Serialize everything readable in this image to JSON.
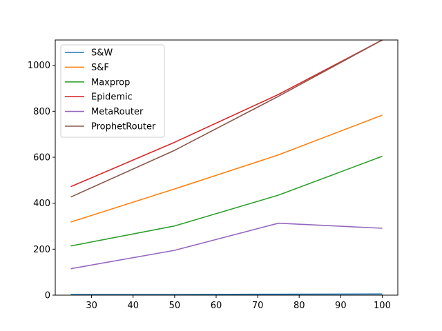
{
  "chart_data": {
    "type": "line",
    "title": "",
    "xlabel": "",
    "ylabel": "",
    "x": [
      25,
      50,
      75,
      100
    ],
    "xlim": [
      21.25,
      103.75
    ],
    "ylim": [
      0,
      1110
    ],
    "xticks": [
      30,
      40,
      50,
      60,
      70,
      80,
      90,
      100
    ],
    "yticks": [
      0,
      200,
      400,
      600,
      800,
      1000
    ],
    "grid": false,
    "legend_position": "top-left",
    "series": [
      {
        "name": "S&W",
        "color": "#1f77b4",
        "values": [
          3,
          3,
          4,
          5
        ]
      },
      {
        "name": "S&F",
        "color": "#ff7f0e",
        "values": [
          318,
          462,
          610,
          783
        ]
      },
      {
        "name": "Maxprop",
        "color": "#2ca02c",
        "values": [
          214,
          301,
          435,
          604
        ]
      },
      {
        "name": "Epidemic",
        "color": "#d62728",
        "values": [
          472,
          665,
          873,
          1110
        ]
      },
      {
        "name": "MetaRouter",
        "color": "#9467bd",
        "values": [
          115,
          195,
          313,
          291
        ]
      },
      {
        "name": "ProphetRouter",
        "color": "#8c564b",
        "values": [
          427,
          630,
          865,
          1110
        ]
      }
    ]
  }
}
